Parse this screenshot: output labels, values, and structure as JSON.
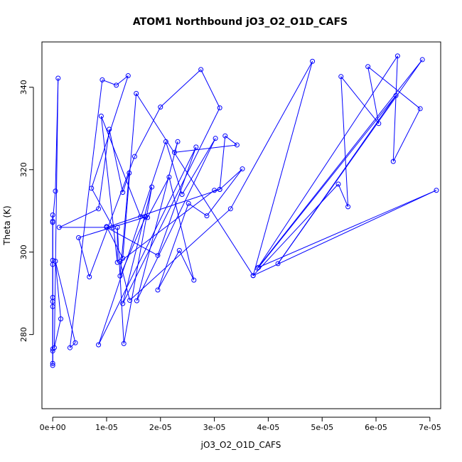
{
  "chart_data": {
    "type": "line",
    "title": "ATOM1 Northbound jO3_O2_O1D_CAFS",
    "xlabel": "jO3_O2_O1D_CAFS",
    "ylabel": "Theta (K)",
    "xlim": [
      -2e-06,
      7.2e-05
    ],
    "ylim": [
      262,
      351
    ],
    "x_ticks": [
      0,
      1e-05,
      2e-05,
      3e-05,
      4e-05,
      5e-05,
      6e-05,
      7e-05
    ],
    "x_tick_labels": [
      "0e+00",
      "1e-05",
      "2e-05",
      "3e-05",
      "4e-05",
      "5e-05",
      "6e-05",
      "7e-05"
    ],
    "y_ticks": [
      280,
      300,
      320,
      340
    ],
    "y_tick_labels": [
      "280",
      "300",
      "320",
      "340"
    ],
    "grid": false,
    "line_color": "#0000ff",
    "marker": "open-circle",
    "series": [
      {
        "x": [
          0.0,
          0.0,
          0.0,
          0.0,
          0.0,
          0.0,
          0.0,
          0.0,
          0.0,
          0.0,
          0.0,
          0.0,
          5e-07,
          1e-06,
          3e-07,
          1.5e-06,
          5e-07,
          4.2e-06,
          3.2e-06,
          9.2e-06,
          1.18e-05,
          1.4e-05,
          7.2e-06,
          1.12e-05,
          1.2e-06,
          8.5e-06,
          1.05e-05,
          1.3e-05,
          1.42e-05,
          1.25e-05,
          1.72e-05,
          4.8e-06,
          6.8e-06,
          1.52e-05,
          2e-05,
          2.75e-05,
          3.1e-05,
          1.3e-05,
          1.84e-05,
          1.32e-05,
          1.2e-05,
          1.2e-05,
          9e-06,
          1.63e-05,
          1.76e-05,
          2.16e-05,
          2.62e-05,
          2.35e-05,
          1.95e-05,
          2.52e-05,
          2.86e-05,
          3.52e-05,
          3.1e-05,
          1e-05,
          1.95e-05,
          2.66e-05,
          8.5e-06,
          2.1e-05,
          2.4e-05,
          3.02e-05,
          1.56e-05,
          2.32e-05,
          2.26e-05,
          3.42e-05,
          3.2e-05,
          3.1e-05,
          3e-05,
          1.25e-05,
          1.43e-05,
          3.3e-05,
          4.82e-05,
          3.72e-05,
          5.3e-05,
          5.48e-05,
          5.35e-05,
          6.05e-05,
          5.85e-05,
          6.82e-05,
          6.32e-05,
          6.4e-05,
          3.8e-05,
          6.86e-05,
          4.18e-05,
          6.37e-05,
          3.82e-05,
          7.12e-05,
          3.72e-05,
          1.55e-05,
          1.3e-05,
          1e-05
        ]
      }
    ],
    "series_y": [
      [
        272.5,
        276.5,
        307.2,
        309.0,
        298.0,
        297.0,
        289.0,
        288.0,
        286.8,
        273.0,
        276.0,
        307.5,
        314.8,
        342.2,
        276.8,
        283.8,
        297.8,
        278.0,
        276.8,
        341.8,
        340.5,
        342.8,
        315.5,
        306.0,
        306.0,
        310.5,
        329.8,
        314.5,
        319.2,
        294.2,
        308.5,
        303.5,
        294.0,
        323.2,
        335.2,
        344.3,
        335.0,
        287.5,
        315.8,
        277.8,
        306.0,
        297.5,
        333.0,
        308.6,
        308.4,
        318.2,
        293.2,
        300.4,
        290.8,
        311.8,
        308.8,
        320.2,
        315.2,
        306.0,
        299.2,
        325.5,
        277.5,
        326.8,
        314.0,
        327.6,
        288.2,
        326.8,
        324.2,
        326.0,
        328.2,
        315.2,
        315.0,
        297.7,
        288.3,
        310.5,
        346.3,
        294.3,
        316.5,
        311.0,
        342.6,
        331.2,
        345.0,
        334.8,
        322.0,
        347.6,
        296.1,
        346.7,
        297.2,
        338.0,
        296.3,
        315.0,
        294.3,
        338.5,
        298.5,
        306.2
      ]
    ]
  }
}
